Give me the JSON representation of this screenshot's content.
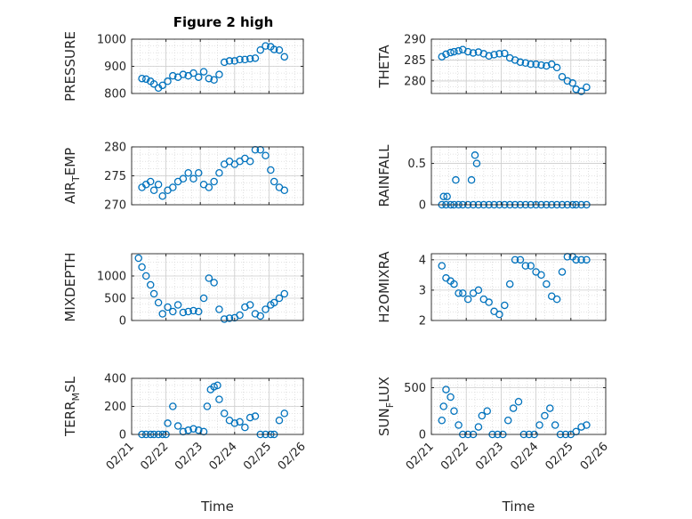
{
  "figure": {
    "title": "Figure 2 high"
  },
  "style": {
    "marker_color": "#0072BD",
    "axis_color": "#262626",
    "grid_color": "#d9d9d9"
  },
  "chart_data": [
    {
      "id": "pressure",
      "type": "scatter",
      "title": "Figure 2 high",
      "ylabel": "PRESSURE",
      "ylabel_sub": "",
      "ylabel_tail": "",
      "xlabel": "",
      "xlim": [
        21,
        26
      ],
      "ylim": [
        800,
        1000
      ],
      "yticks": [
        800,
        900,
        1000
      ],
      "ytick_labels": [
        "800",
        "900",
        "1000"
      ],
      "xtick_labels": [],
      "grid": true,
      "x": [
        21.3,
        21.42,
        21.55,
        21.65,
        21.78,
        21.9,
        22.05,
        22.2,
        22.35,
        22.5,
        22.65,
        22.8,
        22.95,
        23.1,
        23.25,
        23.4,
        23.55,
        23.7,
        23.85,
        24.0,
        24.15,
        24.3,
        24.45,
        24.6,
        24.75,
        24.9,
        25.05,
        25.15,
        25.3,
        25.45
      ],
      "y": [
        855,
        853,
        845,
        835,
        820,
        830,
        845,
        865,
        860,
        870,
        865,
        875,
        860,
        880,
        855,
        850,
        870,
        915,
        920,
        920,
        925,
        925,
        928,
        930,
        960,
        975,
        972,
        962,
        960,
        935
      ]
    },
    {
      "id": "theta",
      "type": "scatter",
      "title": "",
      "ylabel": "THETA",
      "ylabel_sub": "",
      "ylabel_tail": "",
      "xlabel": "",
      "xlim": [
        21,
        26
      ],
      "ylim": [
        277,
        290
      ],
      "yticks": [
        280,
        285,
        290
      ],
      "ytick_labels": [
        "280",
        "285",
        "290"
      ],
      "xtick_labels": [],
      "grid": true,
      "x": [
        21.3,
        21.42,
        21.55,
        21.65,
        21.78,
        21.9,
        22.05,
        22.2,
        22.35,
        22.5,
        22.65,
        22.8,
        22.95,
        23.1,
        23.25,
        23.4,
        23.55,
        23.7,
        23.85,
        24.0,
        24.15,
        24.3,
        24.45,
        24.6,
        24.75,
        24.9,
        25.05,
        25.15,
        25.3,
        25.45
      ],
      "y": [
        285.8,
        286.4,
        286.8,
        287.0,
        287.2,
        287.5,
        287.0,
        286.7,
        286.9,
        286.5,
        286.0,
        286.3,
        286.5,
        286.6,
        285.5,
        285.0,
        284.5,
        284.3,
        284.0,
        284.0,
        283.8,
        283.6,
        284.0,
        283.2,
        281.0,
        280.0,
        279.5,
        278.0,
        277.5,
        278.5
      ]
    },
    {
      "id": "air_temp",
      "type": "scatter",
      "title": "",
      "ylabel": "AIR",
      "ylabel_sub": "T",
      "ylabel_tail": "EMP",
      "xlabel": "",
      "xlim": [
        21,
        26
      ],
      "ylim": [
        270,
        280
      ],
      "yticks": [
        270,
        275,
        280
      ],
      "ytick_labels": [
        "270",
        "275",
        "280"
      ],
      "xtick_labels": [],
      "grid": true,
      "x": [
        21.3,
        21.42,
        21.55,
        21.65,
        21.78,
        21.9,
        22.05,
        22.2,
        22.35,
        22.5,
        22.65,
        22.8,
        22.95,
        23.1,
        23.25,
        23.4,
        23.55,
        23.7,
        23.85,
        24.0,
        24.15,
        24.3,
        24.45,
        24.6,
        24.75,
        24.9,
        25.05,
        25.15,
        25.3,
        25.45
      ],
      "y": [
        273.0,
        273.5,
        274.0,
        272.5,
        273.5,
        271.5,
        272.5,
        273.0,
        274.0,
        274.5,
        275.5,
        274.5,
        275.5,
        273.5,
        273.0,
        274.0,
        275.5,
        277.0,
        277.5,
        277.0,
        277.5,
        278.0,
        277.5,
        279.5,
        279.5,
        278.5,
        276.0,
        274.0,
        273.0,
        272.5
      ]
    },
    {
      "id": "rainfall",
      "type": "scatter",
      "title": "",
      "ylabel": "RAINFALL",
      "ylabel_sub": "",
      "ylabel_tail": "",
      "xlabel": "",
      "xlim": [
        21,
        26
      ],
      "ylim": [
        0,
        0.7
      ],
      "yticks": [
        0,
        0.5
      ],
      "ytick_labels": [
        "0",
        "0.5"
      ],
      "xtick_labels": [],
      "grid": true,
      "x": [
        21.3,
        21.42,
        21.55,
        21.65,
        21.78,
        21.9,
        22.05,
        22.2,
        22.35,
        22.5,
        22.65,
        22.8,
        22.95,
        23.1,
        23.25,
        23.4,
        23.55,
        23.7,
        23.85,
        24.0,
        24.15,
        24.3,
        24.45,
        24.6,
        24.75,
        24.9,
        25.05,
        25.15,
        25.3,
        25.45,
        21.35,
        21.45,
        21.7,
        22.15,
        22.25,
        22.3
      ],
      "y": [
        0,
        0,
        0,
        0,
        0,
        0,
        0,
        0,
        0,
        0,
        0,
        0,
        0,
        0,
        0,
        0,
        0,
        0,
        0,
        0,
        0,
        0,
        0,
        0,
        0,
        0,
        0,
        0,
        0,
        0,
        0.1,
        0.1,
        0.3,
        0.3,
        0.6,
        0.5
      ]
    },
    {
      "id": "mixdepth",
      "type": "scatter",
      "title": "",
      "ylabel": "MIXDEPTH",
      "ylabel_sub": "",
      "ylabel_tail": "",
      "xlabel": "",
      "xlim": [
        21,
        26
      ],
      "ylim": [
        0,
        1500
      ],
      "yticks": [
        0,
        500,
        1000
      ],
      "ytick_labels": [
        "0",
        "500",
        "1000"
      ],
      "xtick_labels": [],
      "grid": true,
      "x": [
        21.2,
        21.3,
        21.42,
        21.55,
        21.65,
        21.78,
        21.9,
        22.05,
        22.2,
        22.35,
        22.5,
        22.65,
        22.8,
        22.95,
        23.1,
        23.25,
        23.4,
        23.55,
        23.7,
        23.85,
        24.0,
        24.15,
        24.3,
        24.45,
        24.6,
        24.75,
        24.9,
        25.05,
        25.15,
        25.3,
        25.45
      ],
      "y": [
        1400,
        1200,
        1000,
        800,
        600,
        400,
        150,
        300,
        200,
        350,
        180,
        200,
        220,
        200,
        500,
        950,
        850,
        250,
        30,
        50,
        60,
        120,
        300,
        350,
        150,
        100,
        250,
        350,
        400,
        500,
        600
      ]
    },
    {
      "id": "h2omixra",
      "type": "scatter",
      "title": "",
      "ylabel": "H2OMIXRA",
      "ylabel_sub": "",
      "ylabel_tail": "",
      "xlabel": "",
      "xlim": [
        21,
        26
      ],
      "ylim": [
        2,
        4.2
      ],
      "yticks": [
        2,
        3,
        4
      ],
      "ytick_labels": [
        "2",
        "3",
        "4"
      ],
      "xtick_labels": [],
      "grid": true,
      "x": [
        21.3,
        21.42,
        21.55,
        21.65,
        21.78,
        21.9,
        22.05,
        22.2,
        22.35,
        22.5,
        22.65,
        22.8,
        22.95,
        23.1,
        23.25,
        23.4,
        23.55,
        23.7,
        23.85,
        24.0,
        24.15,
        24.3,
        24.45,
        24.6,
        24.75,
        24.9,
        25.05,
        25.15,
        25.3,
        25.45
      ],
      "y": [
        3.8,
        3.4,
        3.3,
        3.2,
        2.9,
        2.9,
        2.7,
        2.9,
        3.0,
        2.7,
        2.6,
        2.3,
        2.2,
        2.5,
        3.2,
        4.0,
        4.0,
        3.8,
        3.8,
        3.6,
        3.5,
        3.2,
        2.8,
        2.7,
        3.6,
        4.1,
        4.1,
        4.0,
        4.0,
        4.0
      ]
    },
    {
      "id": "terr_msl",
      "type": "scatter",
      "title": "",
      "ylabel": "TERR",
      "ylabel_sub": "M",
      "ylabel_tail": "SL",
      "xlabel": "Time",
      "xlim": [
        21,
        26
      ],
      "ylim": [
        0,
        400
      ],
      "yticks": [
        0,
        200,
        400
      ],
      "ytick_labels": [
        "0",
        "200",
        "400"
      ],
      "xtick_labels": [
        "02/21",
        "02/22",
        "02/23",
        "02/24",
        "02/25",
        "02/26"
      ],
      "grid": true,
      "x": [
        21.3,
        21.42,
        21.55,
        21.65,
        21.78,
        21.9,
        22.0,
        22.05,
        22.2,
        22.35,
        22.5,
        22.65,
        22.8,
        22.95,
        23.1,
        23.2,
        23.3,
        23.4,
        23.5,
        23.55,
        23.7,
        23.85,
        24.0,
        24.15,
        24.3,
        24.45,
        24.6,
        24.75,
        24.9,
        25.05,
        25.15,
        25.3,
        25.45
      ],
      "y": [
        0,
        0,
        0,
        0,
        0,
        0,
        0,
        80,
        200,
        60,
        20,
        30,
        40,
        30,
        20,
        200,
        320,
        340,
        350,
        250,
        150,
        100,
        80,
        90,
        50,
        120,
        130,
        0,
        0,
        0,
        0,
        100,
        150
      ]
    },
    {
      "id": "sun_flux",
      "type": "scatter",
      "title": "",
      "ylabel": "SUN",
      "ylabel_sub": "F",
      "ylabel_tail": "LUX",
      "xlabel": "Time",
      "xlim": [
        21,
        26
      ],
      "ylim": [
        0,
        600
      ],
      "yticks": [
        0,
        500
      ],
      "ytick_labels": [
        "0",
        "500"
      ],
      "xtick_labels": [
        "02/21",
        "02/22",
        "02/23",
        "02/24",
        "02/25",
        "02/26"
      ],
      "grid": true,
      "x": [
        21.3,
        21.35,
        21.42,
        21.55,
        21.65,
        21.78,
        21.9,
        22.05,
        22.2,
        22.35,
        22.45,
        22.6,
        22.75,
        22.9,
        23.05,
        23.2,
        23.35,
        23.5,
        23.65,
        23.8,
        23.95,
        24.1,
        24.25,
        24.4,
        24.55,
        24.7,
        24.85,
        25.0,
        25.15,
        25.3,
        25.45
      ],
      "y": [
        150,
        300,
        480,
        400,
        250,
        100,
        0,
        0,
        0,
        80,
        200,
        250,
        0,
        0,
        0,
        150,
        280,
        350,
        0,
        0,
        0,
        100,
        200,
        280,
        100,
        0,
        0,
        0,
        30,
        80,
        100
      ]
    }
  ]
}
